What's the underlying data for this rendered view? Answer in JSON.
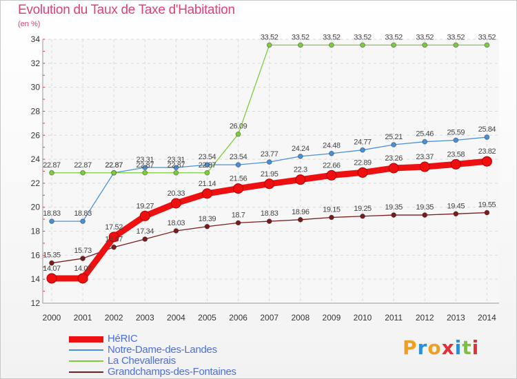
{
  "title": "Evolution du Taux de Taxe d'Habitation",
  "unit_label": "(en %)",
  "logo": {
    "letters": [
      "P",
      "r",
      "o",
      "x",
      "i",
      "t",
      "i"
    ],
    "colors": [
      "#f0a020",
      "#2a8fd6",
      "#f0a020",
      "#e0303a",
      "#2a8fd6",
      "#80c040",
      "#e0303a"
    ]
  },
  "chart_data": {
    "type": "line",
    "title": "Evolution du Taux de Taxe d'Habitation",
    "ylabel": "(en %)",
    "xlabel": "",
    "ylim": [
      12,
      34
    ],
    "yticks": [
      12,
      14,
      16,
      18,
      20,
      22,
      24,
      26,
      28,
      30,
      32,
      34
    ],
    "grid": true,
    "legend": "bottom-left",
    "x": [
      "2000",
      "2001",
      "2002",
      "2003",
      "2004",
      "2005",
      "2006",
      "2007",
      "2008",
      "2009",
      "2010",
      "2011",
      "2012",
      "2013",
      "2014"
    ],
    "series": [
      {
        "name": "HéRIC",
        "color": "#ee1010",
        "emphasis": true,
        "values": [
          14.07,
          14.07,
          17.52,
          19.27,
          20.33,
          21.14,
          21.56,
          21.95,
          22.3,
          22.66,
          22.89,
          23.26,
          23.37,
          23.58,
          23.82
        ],
        "labels": [
          "14.07",
          "14.07",
          "17.52",
          "19.27",
          "20.33",
          "21.14",
          "21.56",
          "21.95",
          "22.3",
          "22.66",
          "22.89",
          "23.26",
          "23.37",
          "23.58",
          "23.82"
        ]
      },
      {
        "name": "Notre-Dame-des-Landes",
        "color": "#4a90d9",
        "emphasis": false,
        "values": [
          18.83,
          18.83,
          22.87,
          23.31,
          23.31,
          23.54,
          23.54,
          23.77,
          24.24,
          24.48,
          24.77,
          25.21,
          25.46,
          25.59,
          25.84
        ],
        "labels": [
          "18.83",
          "18.83",
          "22.87",
          "23.31",
          "23.31",
          "23.54",
          "23.54",
          "23.77",
          "24.24",
          "24.48",
          "24.77",
          "25.21",
          "25.46",
          "25.59",
          "25.84"
        ]
      },
      {
        "name": "La Chevallerais",
        "color": "#7ccc3c",
        "emphasis": false,
        "values": [
          22.87,
          22.87,
          22.87,
          22.87,
          22.87,
          22.87,
          26.09,
          33.52,
          33.52,
          33.52,
          33.52,
          33.52,
          33.52,
          33.52,
          33.52
        ],
        "labels": [
          "22.87",
          "22.87",
          "22.87",
          "22.87",
          "22.87",
          "22.87",
          "26.09",
          "33.52",
          "33.52",
          "33.52",
          "33.52",
          "33.52",
          "33.52",
          "33.52",
          "33.52"
        ]
      },
      {
        "name": "Grandchamps-des-Fontaines",
        "color": "#7a1c1c",
        "emphasis": false,
        "values": [
          15.35,
          15.73,
          16.67,
          17.34,
          18.03,
          18.39,
          18.7,
          18.83,
          18.96,
          19.15,
          19.25,
          19.35,
          19.35,
          19.45,
          19.55
        ],
        "labels": [
          "15.35",
          "15.73",
          "16.67",
          "17.34",
          "18.03",
          "18.39",
          "18.7",
          "18.83",
          "18.96",
          "19.15",
          "19.25",
          "19.35",
          "19.35",
          "19.45",
          "19.55"
        ]
      }
    ]
  }
}
